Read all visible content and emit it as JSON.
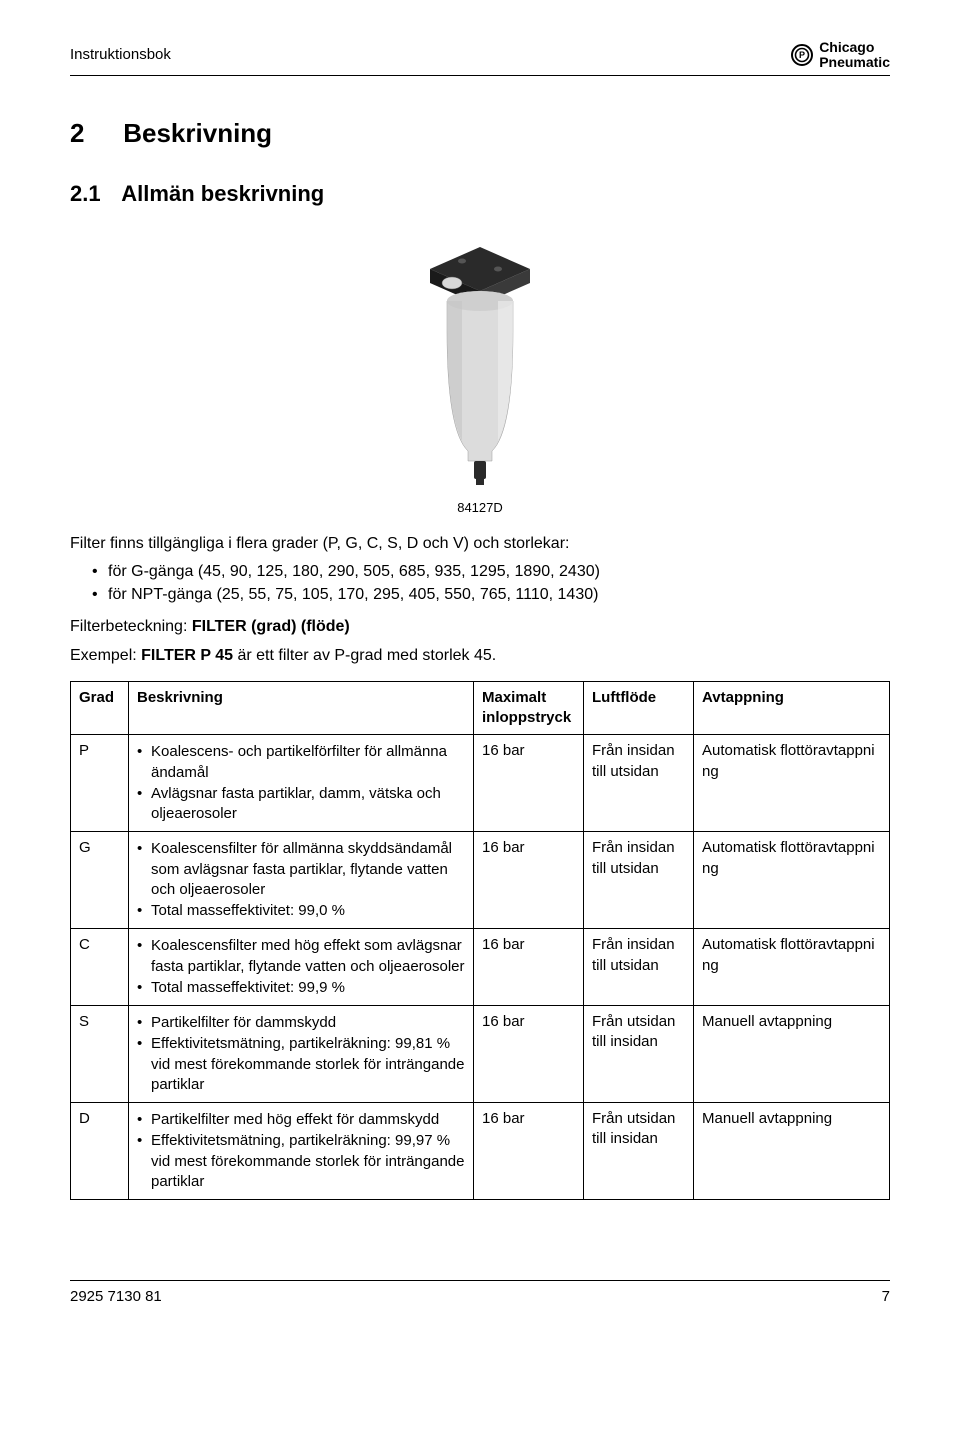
{
  "header": {
    "doc_title": "Instruktionsbok",
    "brand_line1": "Chicago",
    "brand_line2": "Pneumatic",
    "logo_text": "Ⓒ"
  },
  "section": {
    "h1_num": "2",
    "h1_title": "Beskrivning",
    "h2_num": "2.1",
    "h2_title": "Allmän beskrivning"
  },
  "figure": {
    "caption": "84127D"
  },
  "intro": {
    "line1": "Filter finns tillgängliga i flera grader (P, G, C, S, D och V) och storlekar:",
    "bullets": [
      "för G-gänga (45, 90, 125, 180, 290, 505, 685, 935, 1295, 1890, 2430)",
      "för NPT-gänga (25, 55, 75, 105, 170, 295, 405, 550, 765, 1110, 1430)"
    ],
    "designation_prefix": "Filterbeteckning: ",
    "designation_bold": "FILTER (grad) (flöde)",
    "example_prefix": "Exempel: ",
    "example_bold": "FILTER P 45",
    "example_suffix": " är ett filter av P-grad med storlek 45."
  },
  "table": {
    "columns": [
      "Grad",
      "Beskrivning",
      "Maximalt inloppstryck",
      "Luftflöde",
      "Avtappning"
    ],
    "rows": [
      {
        "grade": "P",
        "desc": [
          "Koalescens- och partikelförfilter för allmänna ändamål",
          "Avlägsnar fasta partiklar, damm, vätska och oljeaerosoler"
        ],
        "pressure": "16 bar",
        "airflow": "Från insidan till utsidan",
        "drain": "Automatisk flottöravtappni ng"
      },
      {
        "grade": "G",
        "desc": [
          "Koalescensfilter för allmänna skyddsändamål som avlägsnar fasta partiklar, flytande vatten och oljeaerosoler",
          "Total masseffektivitet: 99,0 %"
        ],
        "pressure": "16 bar",
        "airflow": "Från insidan till utsidan",
        "drain": "Automatisk flottöravtappni ng"
      },
      {
        "grade": "C",
        "desc": [
          "Koalescensfilter med hög effekt som avlägsnar fasta partiklar, flytande vatten och oljeaerosoler",
          "Total masseffektivitet: 99,9 %"
        ],
        "pressure": "16 bar",
        "airflow": "Från insidan till utsidan",
        "drain": "Automatisk flottöravtappni ng"
      },
      {
        "grade": "S",
        "desc": [
          "Partikelfilter för dammskydd",
          "Effektivitetsmätning, partikelräkning: 99,81 % vid mest förekommande storlek för inträngande partiklar"
        ],
        "pressure": "16 bar",
        "airflow": "Från utsidan till insidan",
        "drain": "Manuell avtappning"
      },
      {
        "grade": "D",
        "desc": [
          "Partikelfilter med hög effekt för dammskydd",
          "Effektivitetsmätning, partikelräkning: 99,97 % vid mest förekommande storlek för inträngande partiklar"
        ],
        "pressure": "16 bar",
        "airflow": "Från utsidan till insidan",
        "drain": "Manuell avtappning"
      }
    ]
  },
  "footer": {
    "doc_number": "2925 7130 81",
    "page_number": "7"
  }
}
